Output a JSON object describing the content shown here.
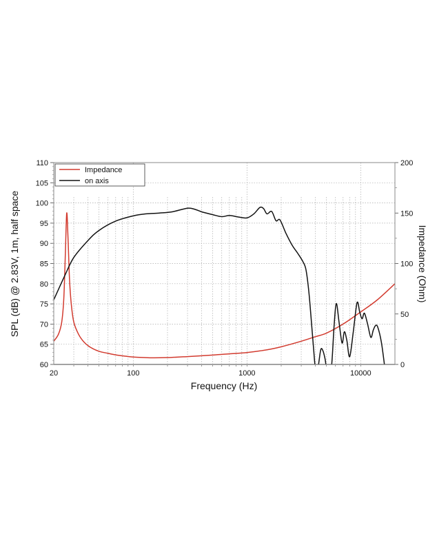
{
  "chart_data": {
    "type": "line",
    "xlabel": "Frequency (Hz)",
    "ylabel": "SPL (dB) @ 2.83V, 1m, half space",
    "y2label": "Impedance (Ohm)",
    "xscale": "log",
    "xlim": [
      20,
      20000
    ],
    "ylim": [
      60,
      110
    ],
    "y2lim": [
      0,
      200
    ],
    "xticks": [
      20,
      100,
      1000,
      10000
    ],
    "xtick_labels": [
      "20",
      "100",
      "1000",
      "10000"
    ],
    "yticks": [
      60,
      65,
      70,
      75,
      80,
      85,
      90,
      95,
      100,
      105,
      110
    ],
    "y2ticks": [
      0,
      50,
      100,
      150,
      200
    ],
    "grid": true,
    "legend": "top-left",
    "series": [
      {
        "name": "Impedance",
        "axis": "right",
        "color": "#d23a2e",
        "x": [
          20,
          22,
          23.5,
          24.5,
          25.3,
          26,
          26.7,
          27.5,
          28.5,
          30,
          33,
          37,
          42,
          50,
          60,
          70,
          85,
          100,
          140,
          200,
          300,
          500,
          700,
          1000,
          1500,
          2000,
          3000,
          4000,
          5000,
          7000,
          10000,
          14000,
          20000
        ],
        "y": [
          23,
          30,
          42,
          65,
          110,
          150,
          125,
          85,
          60,
          42,
          30,
          22,
          17,
          13,
          11,
          9.5,
          8.2,
          7.3,
          6.6,
          6.8,
          7.8,
          9.3,
          10.5,
          11.8,
          14.5,
          17.5,
          23,
          27.5,
          31,
          40,
          52,
          64,
          80
        ]
      },
      {
        "name": "on axis",
        "axis": "left",
        "color": "#111111",
        "x": [
          20,
          25,
          30,
          40,
          50,
          70,
          100,
          130,
          170,
          220,
          300,
          350,
          400,
          500,
          600,
          700,
          850,
          1000,
          1150,
          1300,
          1400,
          1500,
          1650,
          1800,
          1950,
          2200,
          2500,
          2800,
          3100,
          3300,
          3500,
          3700,
          3850,
          4000,
          4200,
          4450,
          4650,
          4850,
          5020,
          5300,
          5560,
          5850,
          6110,
          6450,
          6860,
          7180,
          7550,
          8000,
          8600,
          9290,
          9800,
          10280,
          10780,
          11500,
          12280,
          12900,
          13480,
          14100,
          15200,
          16330
        ],
        "y": [
          76,
          82,
          86.5,
          90.7,
          93.2,
          95.5,
          96.8,
          97.3,
          97.5,
          97.8,
          98.7,
          98.4,
          97.8,
          97.1,
          96.6,
          96.9,
          96.5,
          96.3,
          97.3,
          98.9,
          98.6,
          97.3,
          97.9,
          95.6,
          95.8,
          92.5,
          89.5,
          87.5,
          85.5,
          83.5,
          78,
          70,
          64,
          59,
          59,
          63.6,
          63.4,
          61.5,
          59,
          58,
          60,
          70,
          75.1,
          70.5,
          65.3,
          68.1,
          66,
          61.9,
          68,
          75.3,
          73,
          71.3,
          72.7,
          70,
          66.7,
          68.5,
          69.6,
          69.3,
          65.5,
          59
        ]
      }
    ]
  }
}
